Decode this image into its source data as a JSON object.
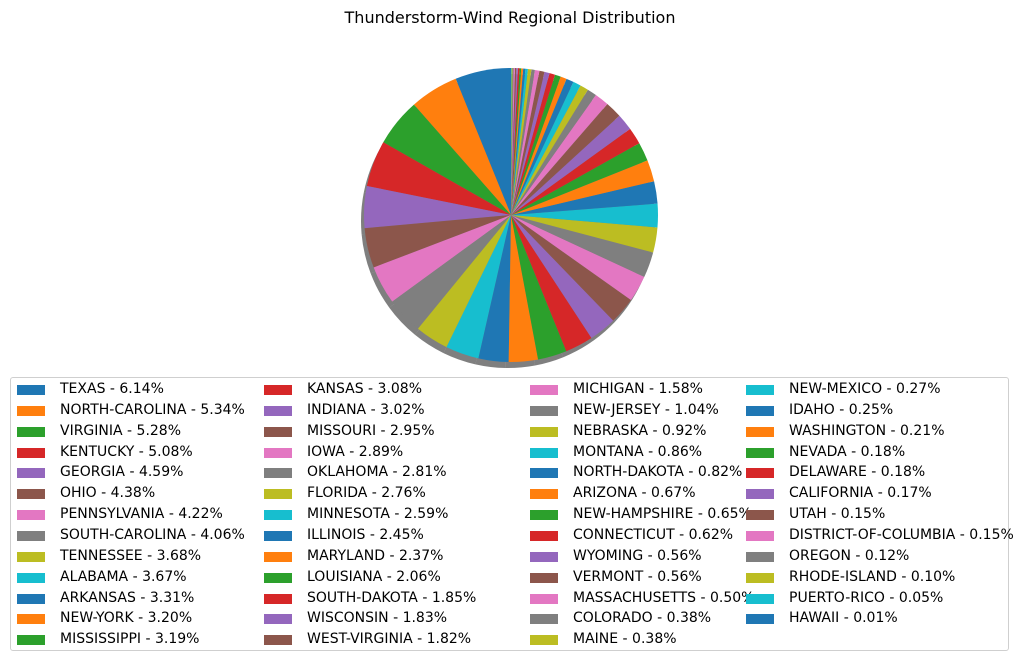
{
  "chart_data": {
    "type": "pie",
    "title": "Thunderstorm-Wind Regional Distribution",
    "legend_placement": "bottom",
    "shadow": true,
    "start": "top",
    "direction": "counterclockwise",
    "palette": [
      "#1f77b4",
      "#ff7f0e",
      "#2ca02c",
      "#d62728",
      "#9467bd",
      "#8c564b",
      "#e377c2",
      "#7f7f7f",
      "#bcbd22",
      "#17becf"
    ],
    "slices": [
      {
        "label": "TEXAS - 6.14%",
        "value": 6.14
      },
      {
        "label": "NORTH-CAROLINA - 5.34%",
        "value": 5.34
      },
      {
        "label": "VIRGINIA - 5.28%",
        "value": 5.28
      },
      {
        "label": "KENTUCKY - 5.08%",
        "value": 5.08
      },
      {
        "label": "GEORGIA - 4.59%",
        "value": 4.59
      },
      {
        "label": "OHIO - 4.38%",
        "value": 4.38
      },
      {
        "label": "PENNSYLVANIA - 4.22%",
        "value": 4.22
      },
      {
        "label": "SOUTH-CAROLINA - 4.06%",
        "value": 4.06
      },
      {
        "label": "TENNESSEE - 3.68%",
        "value": 3.68
      },
      {
        "label": "ALABAMA - 3.67%",
        "value": 3.67
      },
      {
        "label": "ARKANSAS - 3.31%",
        "value": 3.31
      },
      {
        "label": "NEW-YORK - 3.20%",
        "value": 3.2
      },
      {
        "label": "MISSISSIPPI - 3.19%",
        "value": 3.19
      },
      {
        "label": "KANSAS - 3.08%",
        "value": 3.08
      },
      {
        "label": "INDIANA - 3.02%",
        "value": 3.02
      },
      {
        "label": "MISSOURI - 2.95%",
        "value": 2.95
      },
      {
        "label": "IOWA - 2.89%",
        "value": 2.89
      },
      {
        "label": "OKLAHOMA - 2.81%",
        "value": 2.81
      },
      {
        "label": "FLORIDA - 2.76%",
        "value": 2.76
      },
      {
        "label": "MINNESOTA - 2.59%",
        "value": 2.59
      },
      {
        "label": "ILLINOIS - 2.45%",
        "value": 2.45
      },
      {
        "label": "MARYLAND - 2.37%",
        "value": 2.37
      },
      {
        "label": "LOUISIANA - 2.06%",
        "value": 2.06
      },
      {
        "label": "SOUTH-DAKOTA - 1.85%",
        "value": 1.85
      },
      {
        "label": "WISCONSIN - 1.83%",
        "value": 1.83
      },
      {
        "label": "WEST-VIRGINIA - 1.82%",
        "value": 1.82
      },
      {
        "label": "MICHIGAN - 1.58%",
        "value": 1.58
      },
      {
        "label": "NEW-JERSEY - 1.04%",
        "value": 1.04
      },
      {
        "label": "NEBRASKA - 0.92%",
        "value": 0.92
      },
      {
        "label": "MONTANA - 0.86%",
        "value": 0.86
      },
      {
        "label": "NORTH-DAKOTA - 0.82%",
        "value": 0.82
      },
      {
        "label": "ARIZONA - 0.67%",
        "value": 0.67
      },
      {
        "label": "NEW-HAMPSHIRE - 0.65%",
        "value": 0.65
      },
      {
        "label": "CONNECTICUT - 0.62%",
        "value": 0.62
      },
      {
        "label": "WYOMING - 0.56%",
        "value": 0.56
      },
      {
        "label": "VERMONT - 0.56%",
        "value": 0.56
      },
      {
        "label": "MASSACHUSETTS - 0.50%",
        "value": 0.5
      },
      {
        "label": "COLORADO - 0.38%",
        "value": 0.38
      },
      {
        "label": "MAINE - 0.38%",
        "value": 0.38
      },
      {
        "label": "NEW-MEXICO - 0.27%",
        "value": 0.27
      },
      {
        "label": "IDAHO - 0.25%",
        "value": 0.25
      },
      {
        "label": "WASHINGTON - 0.21%",
        "value": 0.21
      },
      {
        "label": "NEVADA - 0.18%",
        "value": 0.18
      },
      {
        "label": "DELAWARE - 0.18%",
        "value": 0.18
      },
      {
        "label": "CALIFORNIA - 0.17%",
        "value": 0.17
      },
      {
        "label": "UTAH - 0.15%",
        "value": 0.15
      },
      {
        "label": "DISTRICT-OF-COLUMBIA - 0.15%",
        "value": 0.15
      },
      {
        "label": "OREGON - 0.12%",
        "value": 0.12
      },
      {
        "label": "RHODE-ISLAND - 0.10%",
        "value": 0.1
      },
      {
        "label": "PUERTO-RICO - 0.05%",
        "value": 0.05
      },
      {
        "label": "HAWAII - 0.01%",
        "value": 0.01
      }
    ]
  }
}
